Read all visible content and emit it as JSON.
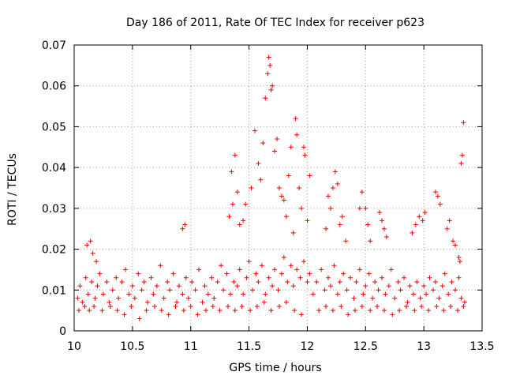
{
  "chart_data": {
    "type": "scatter",
    "title": "Day 186 of 2011, Rate Of TEC Index for receiver p623",
    "xlabel": "GPS time / hours",
    "ylabel": "ROTI / TECUs",
    "xlim": [
      10,
      13.5
    ],
    "ylim": [
      0,
      0.07
    ],
    "xticks": [
      10,
      10.5,
      11,
      11.5,
      12,
      12.5,
      13,
      13.5
    ],
    "xtick_labels": [
      "10",
      "10.5",
      "11",
      "11.5",
      "12",
      "12.5",
      "13",
      "13.5"
    ],
    "yticks": [
      0,
      0.01,
      0.02,
      0.03,
      0.04,
      0.05,
      0.06,
      0.07
    ],
    "ytick_labels": [
      "0",
      "0.01",
      "0.02",
      "0.03",
      "0.04",
      "0.05",
      "0.06",
      "0.07"
    ],
    "grid": true,
    "marker": "+",
    "color": "#ee0000",
    "series": [
      {
        "name": "ROTI",
        "x": [
          10.03,
          10.05,
          10.07,
          10.1,
          10.12,
          10.15,
          10.18,
          10.2,
          10.22,
          10.25,
          10.28,
          10.3,
          10.33,
          10.36,
          10.38,
          10.41,
          10.44,
          10.47,
          10.5,
          10.52,
          10.55,
          10.58,
          10.6,
          10.63,
          10.66,
          10.68,
          10.71,
          10.74,
          10.77,
          10.8,
          10.82,
          10.85,
          10.88,
          10.9,
          10.93,
          10.96,
          10.98,
          11.01,
          11.04,
          11.07,
          11.1,
          11.12,
          11.15,
          11.18,
          11.2,
          11.23,
          11.26,
          11.28,
          11.31,
          11.34,
          11.37,
          11.4,
          11.42,
          11.45,
          11.48,
          11.5,
          11.53,
          11.56,
          11.58,
          11.61,
          11.64,
          11.67,
          11.7,
          11.72,
          11.75,
          11.78,
          11.8,
          11.83,
          11.86,
          11.88,
          11.91,
          11.94,
          11.97,
          12.0,
          12.02,
          12.05,
          12.08,
          12.12,
          12.15,
          12.18,
          12.2,
          12.23,
          12.26,
          12.28,
          12.31,
          12.34,
          12.37,
          12.4,
          12.42,
          12.45,
          12.48,
          12.5,
          12.53,
          12.56,
          12.58,
          12.61,
          12.64,
          12.67,
          12.7,
          12.72,
          12.75,
          12.78,
          12.8,
          12.83,
          12.86,
          12.88,
          12.91,
          12.94,
          12.97,
          13.0,
          13.02,
          13.05,
          13.08,
          13.1,
          13.13,
          13.16,
          13.18,
          13.21,
          13.24,
          13.27,
          13.3,
          13.32,
          13.35,
          10.04,
          10.09,
          10.13,
          10.17,
          10.24,
          10.31,
          10.37,
          10.43,
          10.49,
          10.56,
          10.62,
          10.69,
          10.75,
          10.81,
          10.87,
          10.94,
          11.0,
          11.06,
          11.13,
          11.19,
          11.25,
          11.32,
          11.38,
          11.44,
          11.51,
          11.57,
          11.63,
          11.69,
          11.76,
          11.82,
          11.89,
          11.95,
          12.1,
          12.16,
          12.22,
          12.29,
          12.35,
          12.41,
          12.47,
          12.54,
          12.6,
          12.66,
          12.73,
          12.79,
          12.85,
          12.92,
          12.98,
          13.04,
          13.11,
          13.17,
          13.23,
          13.29,
          13.34,
          10.11,
          10.14,
          10.16,
          10.19,
          10.93,
          10.95,
          11.33,
          11.35,
          11.36,
          11.38,
          11.4,
          11.42,
          11.45,
          11.47,
          11.52,
          11.55,
          11.58,
          11.6,
          11.62,
          11.64,
          11.66,
          11.67,
          11.68,
          11.69,
          11.7,
          11.72,
          11.74,
          11.76,
          11.78,
          11.8,
          11.82,
          11.84,
          11.86,
          11.88,
          11.9,
          11.91,
          11.93,
          11.95,
          11.97,
          11.98,
          12.0,
          12.02,
          12.16,
          12.18,
          12.2,
          12.22,
          12.24,
          12.26,
          12.28,
          12.3,
          12.33,
          12.45,
          12.47,
          12.5,
          12.52,
          12.54,
          12.62,
          12.64,
          12.66,
          12.68,
          12.9,
          12.93,
          12.96,
          12.99,
          13.01,
          13.1,
          13.12,
          13.14,
          13.2,
          13.22,
          13.25,
          13.27,
          13.3,
          13.31,
          13.32,
          13.33,
          13.34
        ],
        "y": [
          0.008,
          0.011,
          0.007,
          0.013,
          0.009,
          0.012,
          0.008,
          0.011,
          0.014,
          0.009,
          0.012,
          0.007,
          0.01,
          0.013,
          0.008,
          0.012,
          0.015,
          0.009,
          0.011,
          0.008,
          0.014,
          0.01,
          0.012,
          0.007,
          0.013,
          0.009,
          0.011,
          0.016,
          0.008,
          0.012,
          0.01,
          0.014,
          0.007,
          0.011,
          0.009,
          0.013,
          0.008,
          0.012,
          0.01,
          0.015,
          0.007,
          0.011,
          0.009,
          0.013,
          0.008,
          0.012,
          0.016,
          0.01,
          0.014,
          0.009,
          0.012,
          0.011,
          0.015,
          0.009,
          0.013,
          0.017,
          0.01,
          0.014,
          0.012,
          0.016,
          0.009,
          0.013,
          0.011,
          0.015,
          0.01,
          0.014,
          0.018,
          0.012,
          0.016,
          0.011,
          0.015,
          0.013,
          0.017,
          0.012,
          0.014,
          0.009,
          0.012,
          0.015,
          0.01,
          0.013,
          0.011,
          0.016,
          0.009,
          0.012,
          0.014,
          0.01,
          0.013,
          0.008,
          0.012,
          0.015,
          0.009,
          0.011,
          0.014,
          0.008,
          0.012,
          0.01,
          0.013,
          0.009,
          0.011,
          0.015,
          0.008,
          0.012,
          0.01,
          0.013,
          0.007,
          0.011,
          0.009,
          0.012,
          0.008,
          0.011,
          0.009,
          0.013,
          0.01,
          0.012,
          0.008,
          0.011,
          0.014,
          0.009,
          0.012,
          0.01,
          0.013,
          0.008,
          0.007,
          0.005,
          0.006,
          0.005,
          0.006,
          0.005,
          0.006,
          0.005,
          0.004,
          0.006,
          0.003,
          0.005,
          0.006,
          0.005,
          0.004,
          0.006,
          0.005,
          0.006,
          0.004,
          0.005,
          0.006,
          0.005,
          0.006,
          0.005,
          0.006,
          0.005,
          0.006,
          0.007,
          0.005,
          0.006,
          0.007,
          0.005,
          0.004,
          0.005,
          0.006,
          0.005,
          0.006,
          0.004,
          0.005,
          0.006,
          0.005,
          0.006,
          0.005,
          0.004,
          0.005,
          0.006,
          0.005,
          0.006,
          0.005,
          0.006,
          0.005,
          0.006,
          0.005,
          0.006,
          0.021,
          0.022,
          0.019,
          0.017,
          0.025,
          0.026,
          0.028,
          0.039,
          0.031,
          0.043,
          0.034,
          0.026,
          0.027,
          0.031,
          0.035,
          0.049,
          0.041,
          0.037,
          0.046,
          0.057,
          0.063,
          0.067,
          0.065,
          0.059,
          0.06,
          0.044,
          0.047,
          0.035,
          0.033,
          0.032,
          0.028,
          0.038,
          0.045,
          0.024,
          0.052,
          0.048,
          0.035,
          0.03,
          0.045,
          0.043,
          0.027,
          0.038,
          0.025,
          0.033,
          0.03,
          0.035,
          0.039,
          0.036,
          0.026,
          0.028,
          0.022,
          0.03,
          0.034,
          0.03,
          0.026,
          0.022,
          0.029,
          0.027,
          0.025,
          0.023,
          0.024,
          0.026,
          0.028,
          0.027,
          0.029,
          0.034,
          0.033,
          0.031,
          0.025,
          0.027,
          0.022,
          0.021,
          0.018,
          0.017,
          0.041,
          0.043,
          0.051
        ]
      }
    ]
  }
}
